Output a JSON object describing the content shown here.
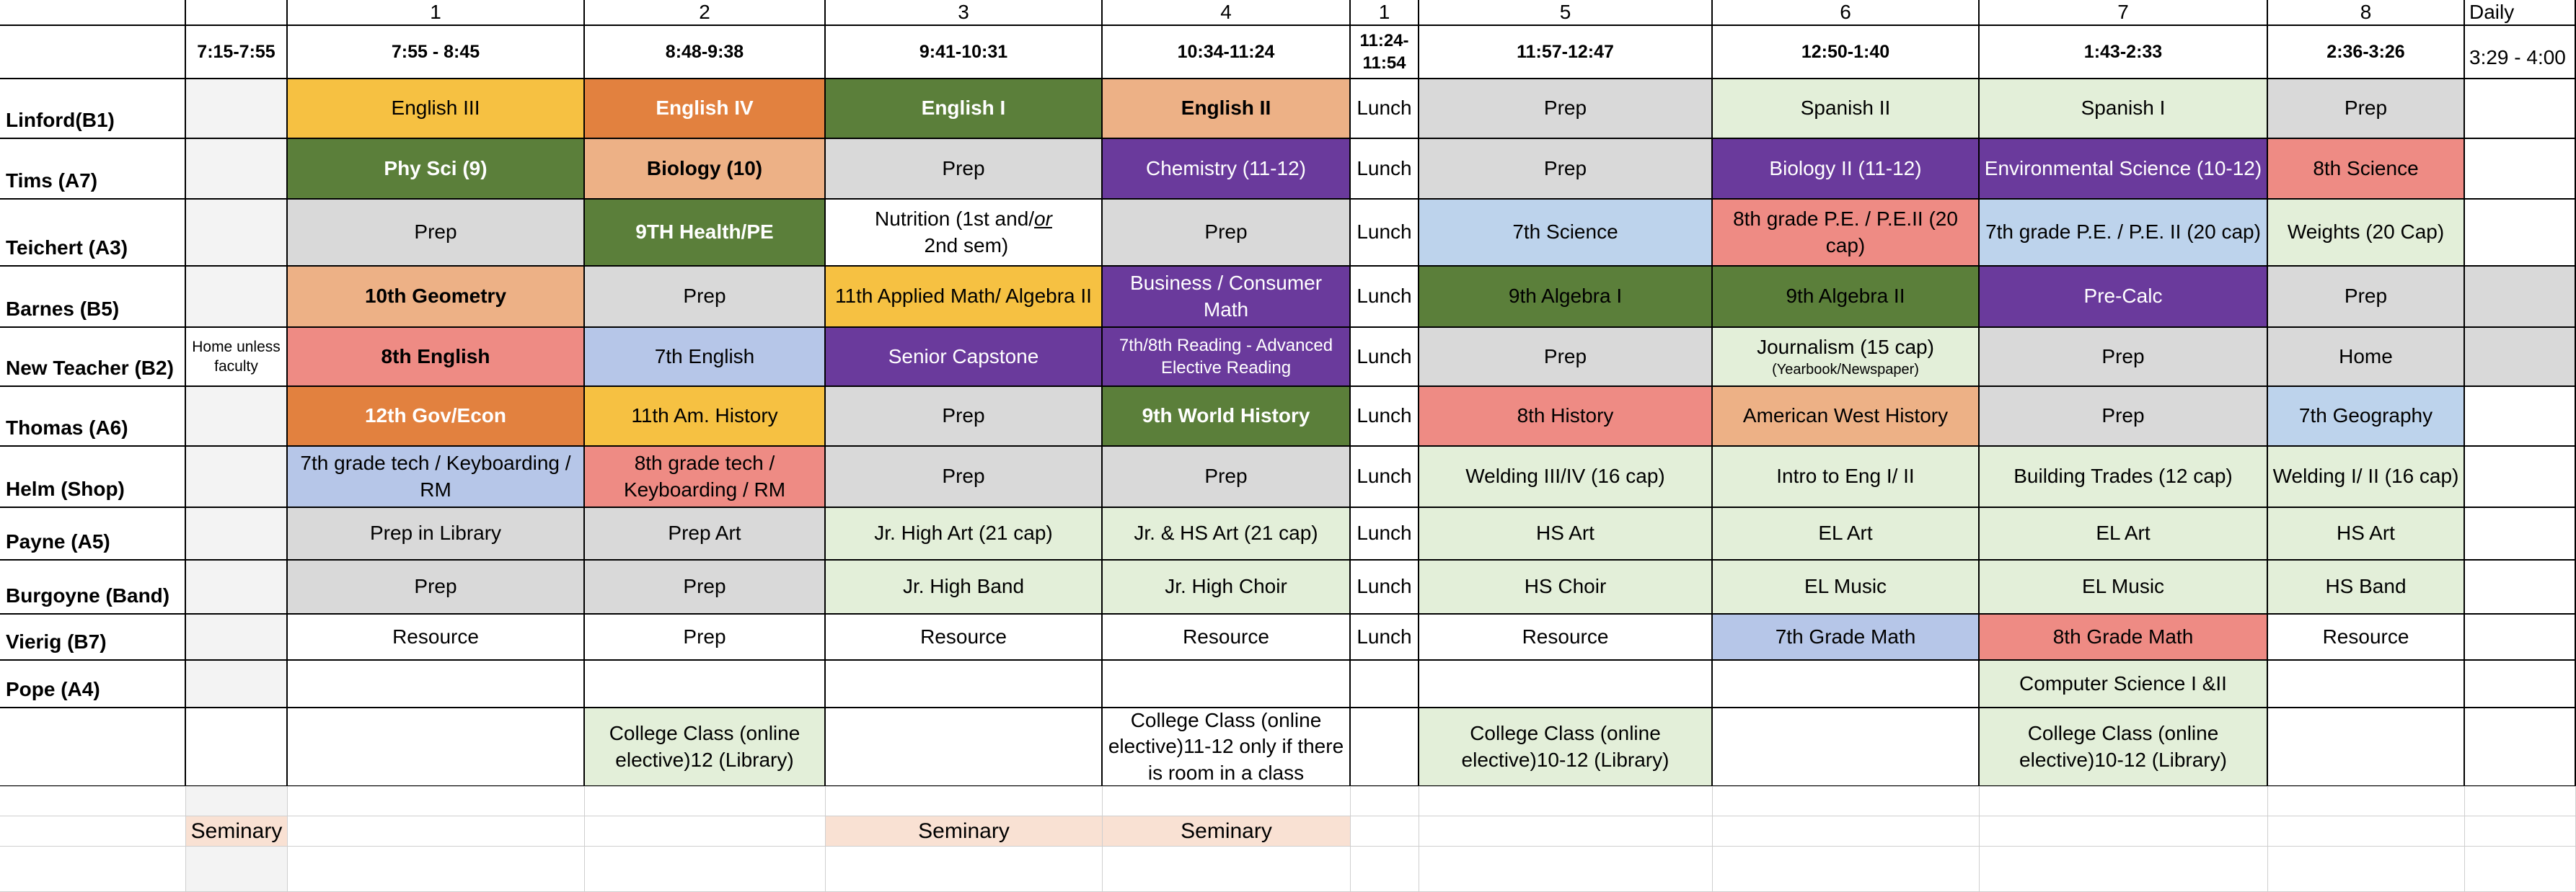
{
  "colors": {
    "yellow": "#F6C142",
    "orange": "#E2813F",
    "dark_green": "#5B7F3A",
    "peach": "#EDB186",
    "gray": "#D9D9D9",
    "purple": "#6A3A9C",
    "light_blue": "#BDD3EC",
    "salmon": "#EE8B84",
    "light_green": "#E3EFD9",
    "periwinkle": "#B6C6E8",
    "lavender_peach": "#F9E1D3",
    "very_light_gray": "#F3F3F3"
  },
  "columns": {
    "numbers": [
      "1",
      "2",
      "3",
      "4",
      "1",
      "5",
      "6",
      "7",
      "8",
      "Daily"
    ],
    "times": [
      "7:15-7:55",
      "7:55 - 8:45",
      "8:48-9:38",
      "9:41-10:31",
      "10:34-11:24",
      "11:24-11:54",
      "11:57-12:47",
      "12:50-1:40",
      "1:43-2:33",
      "2:36-3:26",
      "3:29 - 4:00"
    ]
  },
  "teachers": [
    {
      "name": "Linford(B1)",
      "cells": [
        "",
        "English III",
        "English IV",
        "English I",
        "English II",
        "Lunch",
        "Prep",
        "Spanish II",
        "Spanish I",
        "Prep",
        ""
      ]
    },
    {
      "name": "Tims (A7)",
      "cells": [
        "",
        "Phy Sci (9)",
        "Biology (10)",
        "Prep",
        "Chemistry (11-12)",
        "Lunch",
        "Prep",
        "Biology II (11-12)",
        "Environmental Science (10-12)",
        "8th Science",
        ""
      ]
    },
    {
      "name": "Teichert (A3)",
      "cells": [
        "",
        "Prep",
        "9TH Health/PE",
        "Nutrition (1st and/or 2nd sem)",
        "Prep",
        "Lunch",
        "7th Science",
        "8th grade P.E. / P.E.II  (20 cap)",
        "7th grade P.E. / P.E. II (20 cap)",
        "Weights (20 Cap)",
        ""
      ]
    },
    {
      "name": "Barnes (B5)",
      "cells": [
        "",
        "10th Geometry",
        "Prep",
        "11th Applied Math/  Algebra II",
        "Business / Consumer Math",
        "Lunch",
        "9th Algebra I",
        "9th Algebra II",
        "Pre-Calc",
        "Prep",
        ""
      ]
    },
    {
      "name": "New Teacher (B2)",
      "cells": [
        "Home unless faculty",
        "8th English",
        "7th English",
        "Senior Capstone",
        "7th/8th Reading - Advanced Elective Reading",
        "Lunch",
        "Prep",
        "Journalism  (15 cap)",
        "Prep",
        "Home",
        ""
      ]
    },
    {
      "name": "Thomas (A6)",
      "cells": [
        "",
        "12th Gov/Econ",
        "11th Am. History",
        "Prep",
        "9th World History",
        "Lunch",
        "8th History",
        "American West  History",
        "Prep",
        "7th Geography",
        ""
      ]
    },
    {
      "name": "Helm (Shop)",
      "cells": [
        "",
        "7th grade tech / Keyboarding / RM",
        "8th grade tech / Keyboarding / RM",
        "Prep",
        "Prep",
        "Lunch",
        "Welding III/IV (16 cap)",
        "Intro to Eng I/ II",
        "Building Trades (12 cap)",
        "Welding I/ II (16 cap)",
        ""
      ]
    },
    {
      "name": "Payne (A5)",
      "cells": [
        "",
        "Prep in Library",
        "Prep Art",
        "Jr. High Art (21 cap)",
        "Jr. & HS Art (21 cap)",
        "Lunch",
        "HS Art",
        "EL Art",
        "EL Art",
        "HS Art",
        ""
      ]
    },
    {
      "name": "Burgoyne (Band)",
      "cells": [
        "",
        "Prep",
        "Prep",
        "Jr. High Band",
        "Jr. High Choir",
        "Lunch",
        "HS Choir",
        "EL Music",
        "EL Music",
        "HS Band",
        ""
      ]
    },
    {
      "name": "Vierig (B7)",
      "cells": [
        "",
        "Resource",
        "Prep",
        "Resource",
        "Resource",
        "Lunch",
        "Resource",
        "7th Grade Math",
        "8th Grade Math",
        "Resource",
        ""
      ]
    },
    {
      "name": "Pope (A4)",
      "cells": [
        "",
        "",
        "",
        "",
        "",
        "",
        "",
        "",
        "Computer Science I &II",
        "",
        ""
      ]
    },
    {
      "name": "",
      "cells": [
        "",
        "",
        "College Class (online elective)12 (Library)",
        "",
        "College Class (online elective)11-12 only if there is room in a class",
        "",
        "College Class (online elective)10-12 (Library)",
        "",
        "College Class (online elective)10-12 (Library)",
        "",
        ""
      ]
    }
  ],
  "journalism_note": "(Yearbook/Newspaper)",
  "nutrition_parts": {
    "before": "Nutrition (1st and/",
    "underlined": "or",
    "after": " 2nd sem)"
  },
  "seminary": {
    "label_a": "Seminary",
    "label_b": "Seminary",
    "label_c": "Seminary"
  }
}
